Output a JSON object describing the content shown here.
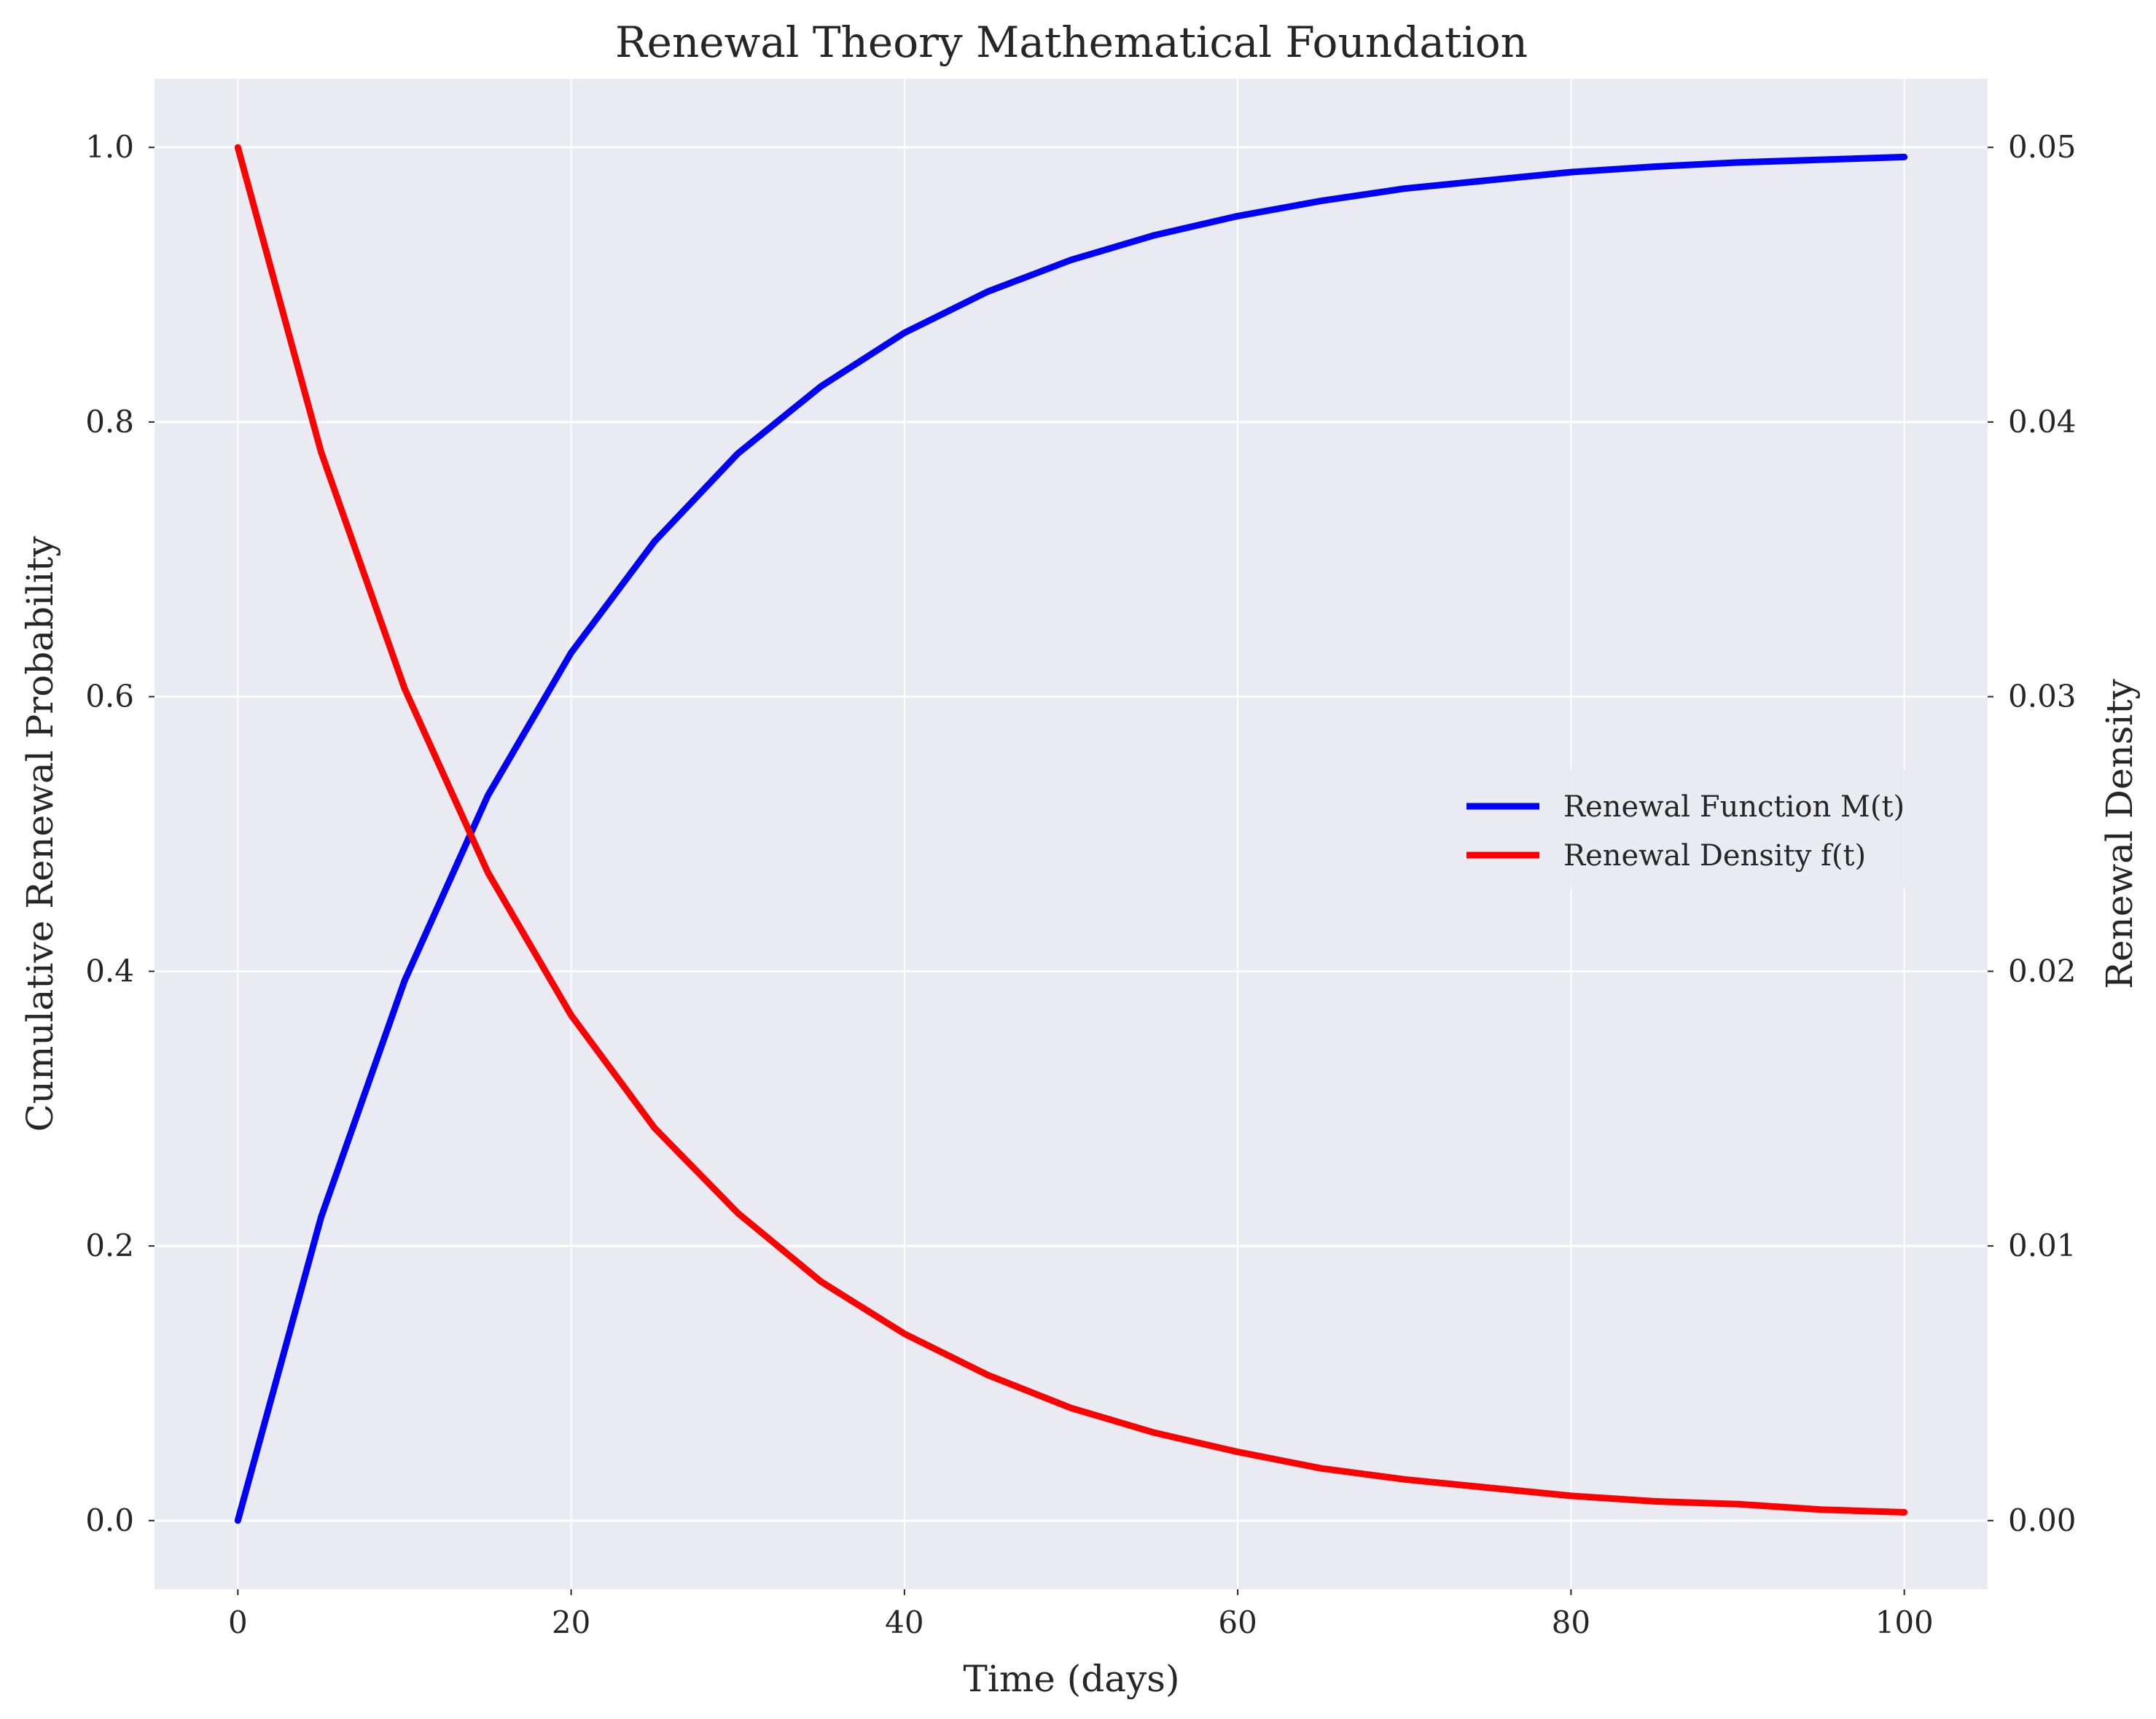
{
  "chart_data": {
    "type": "line",
    "title": "Renewal Theory Mathematical Foundation",
    "xlabel": "Time (days)",
    "ylabel_left": "Cumulative Renewal Probability",
    "ylabel_right": "Renewal Density",
    "xlim": [
      -5,
      105
    ],
    "ylim_left": [
      -0.05,
      1.05
    ],
    "ylim_right": [
      -0.0025,
      0.0525
    ],
    "x_ticks": [
      0,
      20,
      40,
      60,
      80,
      100
    ],
    "x_tick_labels": [
      "0",
      "20",
      "40",
      "60",
      "80",
      "100"
    ],
    "y_left_ticks": [
      0.0,
      0.2,
      0.4,
      0.6,
      0.8,
      1.0
    ],
    "y_left_tick_labels": [
      "0.0",
      "0.2",
      "0.4",
      "0.6",
      "0.8",
      "1.0"
    ],
    "y_right_ticks": [
      0.0,
      0.01,
      0.02,
      0.03,
      0.04,
      0.05
    ],
    "y_right_tick_labels": [
      "0.00",
      "0.01",
      "0.02",
      "0.03",
      "0.04",
      "0.05"
    ],
    "grid": true,
    "legend_position": "center-right",
    "background_color": "#eaeaf2",
    "ylabel_left_color": "#0000ff",
    "ylabel_right_color": "#ff0000",
    "series": [
      {
        "name": "Renewal Function M(t)",
        "axis": "left",
        "color": "#0000ff",
        "x": [
          0,
          5,
          10,
          15,
          20,
          25,
          30,
          35,
          40,
          45,
          50,
          55,
          60,
          65,
          70,
          75,
          80,
          85,
          90,
          95,
          100
        ],
        "y": [
          0.0,
          0.221,
          0.393,
          0.528,
          0.632,
          0.713,
          0.777,
          0.826,
          0.865,
          0.895,
          0.918,
          0.936,
          0.95,
          0.961,
          0.97,
          0.976,
          0.982,
          0.986,
          0.989,
          0.991,
          0.993
        ]
      },
      {
        "name": "Renewal Density f(t)",
        "axis": "right",
        "color": "#ff0000",
        "x": [
          0,
          5,
          10,
          15,
          20,
          25,
          30,
          35,
          40,
          45,
          50,
          55,
          60,
          65,
          70,
          75,
          80,
          85,
          90,
          95,
          100
        ],
        "y": [
          0.05,
          0.0389,
          0.0303,
          0.0236,
          0.0184,
          0.0143,
          0.0112,
          0.0087,
          0.0068,
          0.0053,
          0.0041,
          0.0032,
          0.0025,
          0.0019,
          0.0015,
          0.0012,
          0.0009,
          0.0007,
          0.0006,
          0.0004,
          0.0003
        ]
      }
    ]
  }
}
